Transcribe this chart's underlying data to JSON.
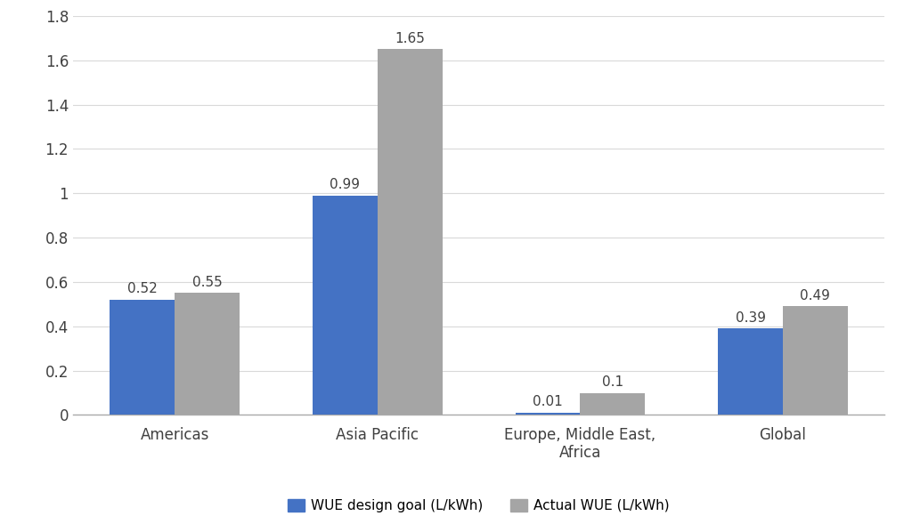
{
  "categories": [
    "Americas",
    "Asia Pacific",
    "Europe, Middle East,\nAfrica",
    "Global"
  ],
  "wue_design_goal": [
    0.52,
    0.99,
    0.01,
    0.39
  ],
  "actual_wue": [
    0.55,
    1.65,
    0.1,
    0.49
  ],
  "wue_design_goal_color": "#4472C4",
  "actual_wue_color": "#A5A5A5",
  "ylim": [
    0,
    1.8
  ],
  "yticks": [
    0,
    0.2,
    0.4,
    0.6,
    0.8,
    1.0,
    1.2,
    1.4,
    1.6,
    1.8
  ],
  "ytick_labels": [
    "0",
    "0.2",
    "0.4",
    "0.6",
    "0.8",
    "1",
    "1.2",
    "1.4",
    "1.6",
    "1.8"
  ],
  "legend_labels": [
    "WUE design goal (L/kWh)",
    "Actual WUE (L/kWh)"
  ],
  "bar_width": 0.32,
  "label_fontsize": 11,
  "tick_fontsize": 12,
  "legend_fontsize": 11,
  "background_color": "#FFFFFF"
}
